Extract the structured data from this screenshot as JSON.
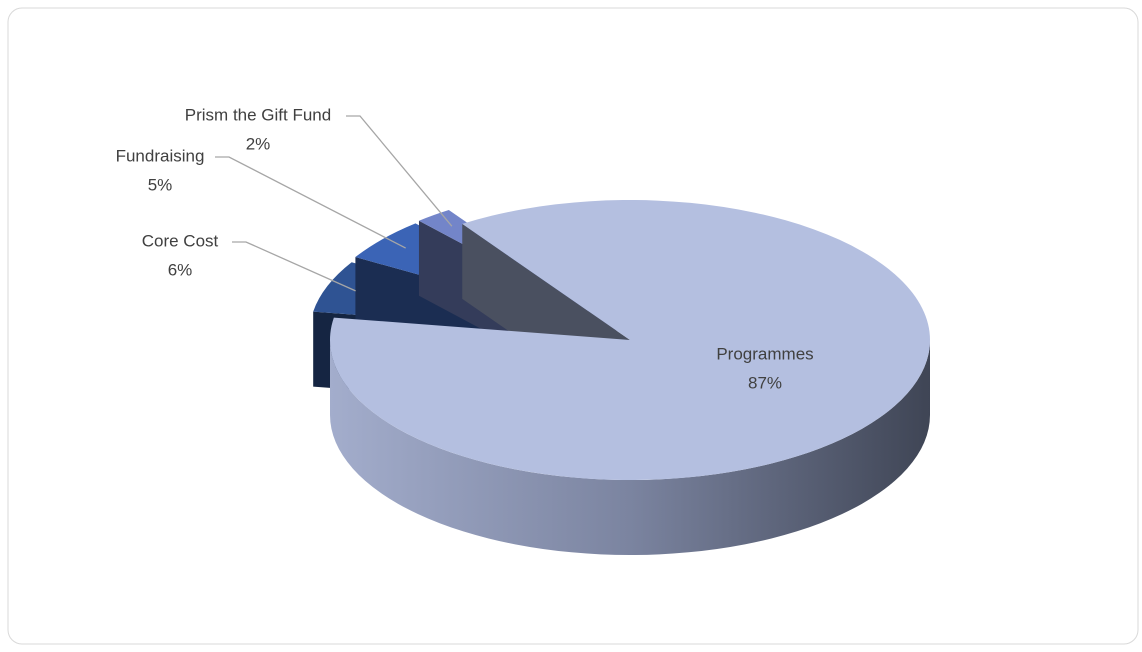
{
  "chart_data": {
    "type": "pie3d",
    "categories": [
      "Programmes",
      "Core Cost",
      "Fundraising",
      "Prism the Gift Fund"
    ],
    "values": [
      87,
      6,
      5,
      2
    ],
    "value_labels": [
      "87%",
      "6%",
      "5%",
      "2%"
    ],
    "colors": [
      "#b4bfe0",
      "#2f5393",
      "#3b64b6",
      "#7385c9"
    ]
  }
}
